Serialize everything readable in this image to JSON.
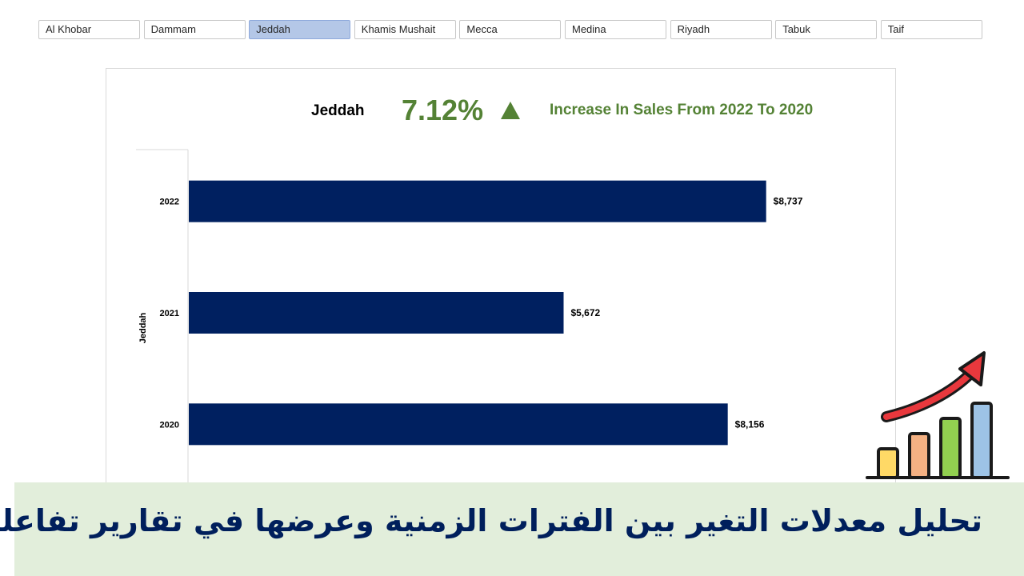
{
  "slicer": {
    "items": [
      "Al Khobar",
      "Dammam",
      "Jeddah",
      "Khamis Mushait",
      "Mecca",
      "Medina",
      "Riyadh",
      "Tabuk",
      "Taif"
    ],
    "selected": "Jeddah"
  },
  "kpi": {
    "city": "Jeddah",
    "percent": "7.12%",
    "direction": "up",
    "text": "Increase In Sales From 2022 To 2020",
    "color": "#548235"
  },
  "chart_data": {
    "type": "bar",
    "orientation": "horizontal",
    "category_group": "Jeddah",
    "categories": [
      "2022",
      "2021",
      "2020"
    ],
    "values": [
      8737,
      5672,
      8156
    ],
    "value_labels": [
      "$8,737",
      "$5,672",
      "$8,156"
    ],
    "bar_color": "#002060",
    "xlim": [
      0,
      10000
    ]
  },
  "banner": {
    "title": "تحليل معدلات التغير بين الفترات الزمنية وعرضها في تقارير تفاعلية"
  },
  "colors": {
    "accent": "#548235",
    "bar": "#002060",
    "banner_bg": "#e2eedb",
    "banner_text": "#001f5c",
    "selected_slicer": "#b4c7e7"
  }
}
